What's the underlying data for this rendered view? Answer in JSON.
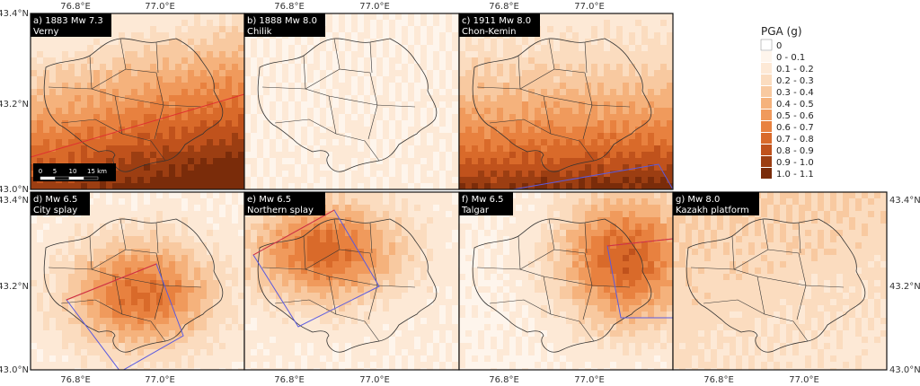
{
  "panels": [
    {
      "label": "a) 1883 Mw 7.3",
      "sublabel": "Verny"
    },
    {
      "label": "b) 1888 Mw 8.0",
      "sublabel": "Chilik"
    },
    {
      "label": "c) 1911 Mw 8.0",
      "sublabel": "Chon-Kemin"
    },
    {
      "label": "d) Mw 6.5",
      "sublabel": "City splay"
    },
    {
      "label": "e) Mw 6.5",
      "sublabel": "Northern splay"
    },
    {
      "label": "f) Mw 6.5",
      "sublabel": "Talgar"
    },
    {
      "label": "g) Mw 8.0",
      "sublabel": "Kazakh platform"
    }
  ],
  "axes": {
    "lon_ticks": [
      "76.8°E",
      "77.0°E"
    ],
    "lat_ticks": [
      "43.4°N",
      "43.2°N",
      "43.0°N"
    ]
  },
  "scalebar": {
    "labels": [
      "0",
      "5",
      "10",
      "15 km"
    ]
  },
  "legend": {
    "title": "PGA (g)",
    "items": [
      {
        "label": "0",
        "color": "#ffffff"
      },
      {
        "label": "0 - 0.1",
        "color": "#fef5ec"
      },
      {
        "label": "0.1 - 0.2",
        "color": "#fde9d6"
      },
      {
        "label": "0.2 - 0.3",
        "color": "#fbdcbf"
      },
      {
        "label": "0.3 - 0.4",
        "color": "#f8c9a0"
      },
      {
        "label": "0.4 - 0.5",
        "color": "#f5b27c"
      },
      {
        "label": "0.5 - 0.6",
        "color": "#f09a5c"
      },
      {
        "label": "0.6 - 0.7",
        "color": "#e8813f"
      },
      {
        "label": "0.7 - 0.8",
        "color": "#d96a2a"
      },
      {
        "label": "0.8 - 0.9",
        "color": "#c0521c"
      },
      {
        "label": "0.9 - 1.0",
        "color": "#9c3e12"
      },
      {
        "label": "1.0 - 1.1",
        "color": "#7a2c0a"
      }
    ]
  },
  "colors": {
    "fault_rupture": "#e03030",
    "fault_outline": "#5a5adf",
    "district_lines": "#333333"
  }
}
